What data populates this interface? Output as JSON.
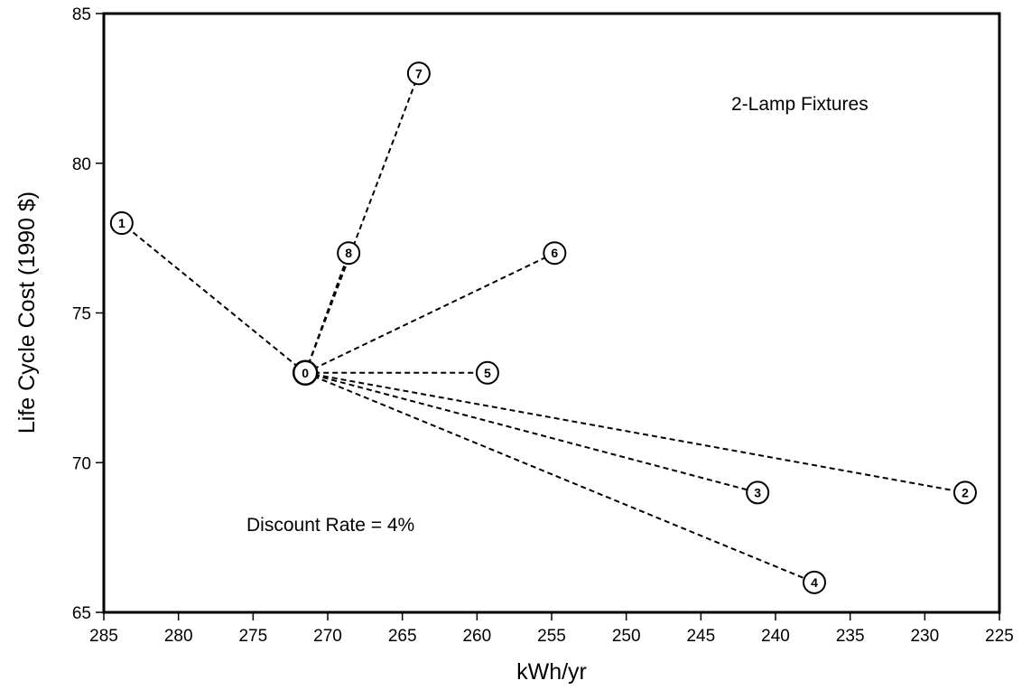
{
  "chart_data": {
    "type": "scatter",
    "title": "",
    "xlabel": "kWh/yr",
    "ylabel": "Life Cycle Cost (1990 $)",
    "xlim": [
      285,
      225
    ],
    "ylim": [
      65,
      85
    ],
    "x_reversed": true,
    "x_ticks": [
      285,
      280,
      275,
      270,
      265,
      260,
      255,
      250,
      245,
      240,
      235,
      230,
      225
    ],
    "y_ticks": [
      65,
      70,
      75,
      80,
      85
    ],
    "grid": false,
    "annotations": [
      "2-Lamp Fixtures",
      "Discount Rate = 4%"
    ],
    "points": [
      {
        "label": "0",
        "x": 271.5,
        "y": 73
      },
      {
        "label": "1",
        "x": 283.8,
        "y": 78
      },
      {
        "label": "2",
        "x": 227.3,
        "y": 69
      },
      {
        "label": "3",
        "x": 241.2,
        "y": 69
      },
      {
        "label": "4",
        "x": 237.4,
        "y": 66
      },
      {
        "label": "5",
        "x": 259.3,
        "y": 73
      },
      {
        "label": "6",
        "x": 254.8,
        "y": 77
      },
      {
        "label": "7",
        "x": 263.9,
        "y": 83
      },
      {
        "label": "8",
        "x": 268.6,
        "y": 77
      }
    ],
    "connections": [
      {
        "from": "0",
        "to": "1"
      },
      {
        "from": "0",
        "to": "2"
      },
      {
        "from": "0",
        "to": "3"
      },
      {
        "from": "0",
        "to": "4"
      },
      {
        "from": "0",
        "to": "5"
      },
      {
        "from": "0",
        "to": "6"
      },
      {
        "from": "0",
        "to": "7"
      },
      {
        "from": "0",
        "to": "8"
      }
    ]
  }
}
